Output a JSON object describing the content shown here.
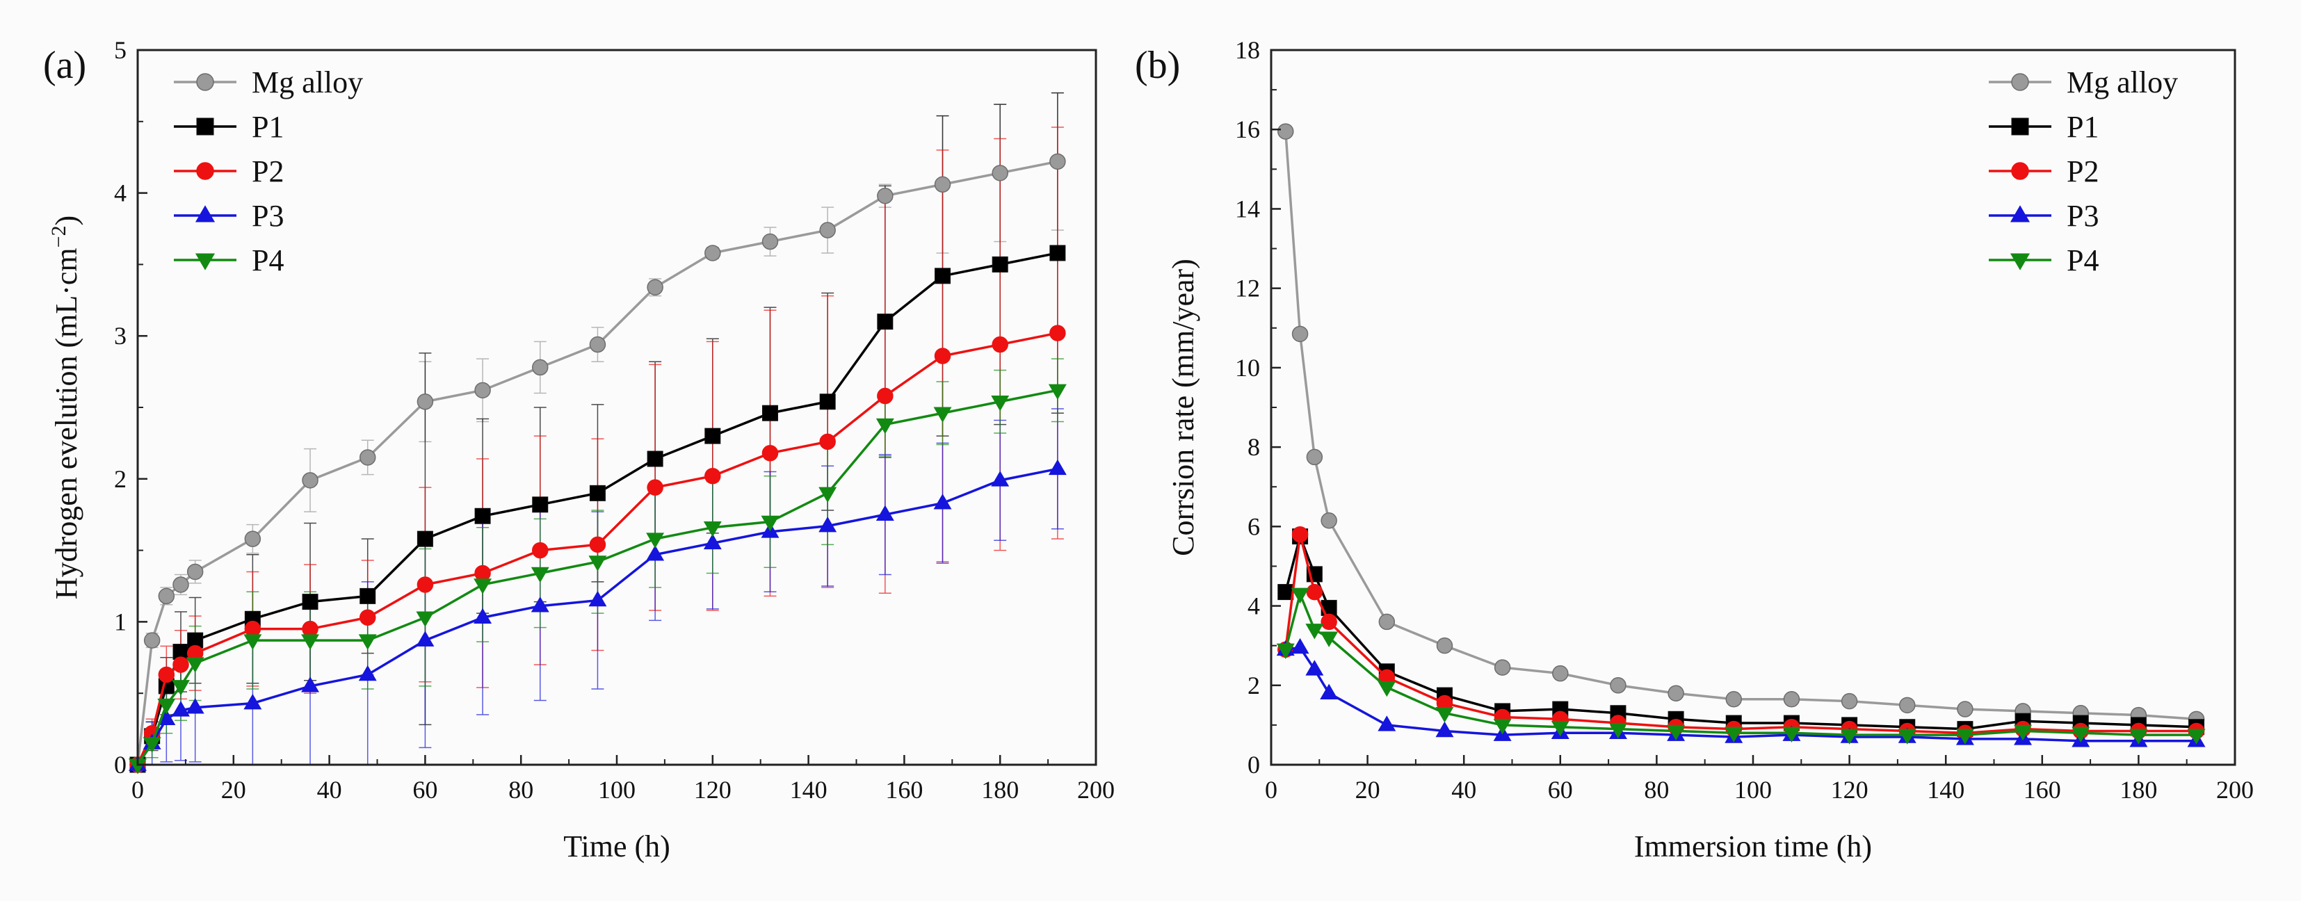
{
  "colors": {
    "Mg alloy": "#9a9a9a",
    "P1": "#000000",
    "P2": "#ee1111",
    "P3": "#1515dd",
    "P4": "#128a12"
  },
  "markers": {
    "Mg alloy": "circle",
    "P1": "square",
    "P2": "circle",
    "P3": "triangle-up",
    "P4": "triangle-down"
  },
  "chart_data": [
    {
      "type": "line",
      "panel_label": "(a)",
      "title": "",
      "xlabel": "Time (h)",
      "ylabel": "Hydrogen evelution (mL·cm",
      "ylabel_sup": "−2",
      "ylabel_close": ")",
      "xlim": [
        0,
        200
      ],
      "ylim": [
        0,
        5
      ],
      "xticks": [
        0,
        20,
        40,
        60,
        80,
        100,
        120,
        140,
        160,
        180,
        200
      ],
      "yticks": [
        0,
        1,
        2,
        3,
        4,
        5
      ],
      "grid": false,
      "legend_position": "top-left",
      "series": [
        {
          "name": "Mg alloy",
          "x": [
            0,
            3,
            6,
            9,
            12,
            24,
            36,
            48,
            60,
            72,
            84,
            96,
            108,
            120,
            132,
            144,
            156,
            168,
            180,
            192
          ],
          "y": [
            0,
            0.87,
            1.18,
            1.26,
            1.35,
            1.58,
            1.99,
            2.15,
            2.54,
            2.62,
            2.78,
            2.94,
            3.34,
            3.58,
            3.66,
            3.74,
            3.98,
            4.06,
            4.14,
            4.22
          ],
          "err": [
            0,
            0.05,
            0.06,
            0.07,
            0.08,
            0.1,
            0.22,
            0.12,
            0.28,
            0.22,
            0.18,
            0.12,
            0.06,
            0.04,
            0.1,
            0.16,
            0.08,
            0.48,
            0.48,
            0.48
          ]
        },
        {
          "name": "P1",
          "x": [
            0,
            3,
            6,
            9,
            12,
            24,
            36,
            48,
            60,
            72,
            84,
            96,
            108,
            120,
            132,
            144,
            156,
            168,
            180,
            192
          ],
          "y": [
            0,
            0.2,
            0.55,
            0.79,
            0.87,
            1.02,
            1.14,
            1.18,
            1.58,
            1.74,
            1.82,
            1.9,
            2.14,
            2.3,
            2.46,
            2.54,
            3.1,
            3.42,
            3.5,
            3.58
          ],
          "err": [
            0,
            0.1,
            0.2,
            0.28,
            0.3,
            0.45,
            0.55,
            0.4,
            1.3,
            0.68,
            0.68,
            0.62,
            0.68,
            0.68,
            0.74,
            0.76,
            0.95,
            1.12,
            1.12,
            1.12
          ]
        },
        {
          "name": "P2",
          "x": [
            0,
            3,
            6,
            9,
            12,
            24,
            36,
            48,
            60,
            72,
            84,
            96,
            108,
            120,
            132,
            144,
            156,
            168,
            180,
            192
          ],
          "y": [
            0,
            0.22,
            0.63,
            0.7,
            0.78,
            0.95,
            0.95,
            1.03,
            1.26,
            1.34,
            1.5,
            1.54,
            1.94,
            2.02,
            2.18,
            2.26,
            2.58,
            2.86,
            2.94,
            3.02
          ],
          "err": [
            0,
            0.1,
            0.2,
            0.24,
            0.26,
            0.4,
            0.45,
            0.4,
            0.68,
            0.8,
            0.8,
            0.74,
            0.86,
            0.94,
            1.0,
            1.02,
            1.38,
            1.44,
            1.44,
            1.44
          ]
        },
        {
          "name": "P3",
          "x": [
            0,
            3,
            6,
            9,
            12,
            24,
            36,
            48,
            60,
            72,
            84,
            96,
            108,
            120,
            132,
            144,
            156,
            168,
            180,
            192
          ],
          "y": [
            0,
            0.15,
            0.32,
            0.38,
            0.4,
            0.43,
            0.55,
            0.63,
            0.87,
            1.03,
            1.11,
            1.15,
            1.47,
            1.55,
            1.63,
            1.67,
            1.75,
            1.83,
            1.99,
            2.07
          ],
          "err": [
            0,
            0.15,
            0.3,
            0.35,
            0.38,
            0.6,
            0.6,
            0.65,
            0.75,
            0.68,
            0.66,
            0.62,
            0.46,
            0.46,
            0.42,
            0.42,
            0.42,
            0.42,
            0.42,
            0.42
          ]
        },
        {
          "name": "P4",
          "x": [
            0,
            3,
            6,
            9,
            12,
            24,
            36,
            48,
            60,
            72,
            84,
            96,
            108,
            120,
            132,
            144,
            156,
            168,
            180,
            192
          ],
          "y": [
            0,
            0.15,
            0.42,
            0.55,
            0.71,
            0.87,
            0.87,
            0.87,
            1.03,
            1.26,
            1.34,
            1.42,
            1.58,
            1.66,
            1.7,
            1.9,
            2.38,
            2.46,
            2.54,
            2.62
          ],
          "err": [
            0,
            0.1,
            0.2,
            0.24,
            0.26,
            0.34,
            0.34,
            0.34,
            0.48,
            0.4,
            0.38,
            0.36,
            0.34,
            0.32,
            0.32,
            0.36,
            0.22,
            0.22,
            0.22,
            0.22
          ]
        }
      ]
    },
    {
      "type": "line",
      "panel_label": "(b)",
      "title": "",
      "xlabel": "Immersion time (h)",
      "ylabel": "Corrsion rate (mm/year)",
      "xlim": [
        0,
        200
      ],
      "ylim": [
        0,
        18
      ],
      "xticks": [
        0,
        20,
        40,
        60,
        80,
        100,
        120,
        140,
        160,
        180,
        200
      ],
      "yticks": [
        0,
        2,
        4,
        6,
        8,
        10,
        12,
        14,
        16,
        18
      ],
      "grid": false,
      "legend_position": "top-right",
      "series": [
        {
          "name": "Mg alloy",
          "x": [
            3,
            6,
            9,
            12,
            24,
            36,
            48,
            60,
            72,
            84,
            96,
            108,
            120,
            132,
            144,
            156,
            168,
            180,
            192
          ],
          "y": [
            15.95,
            10.85,
            7.75,
            6.15,
            3.6,
            3.0,
            2.45,
            2.3,
            2.0,
            1.8,
            1.65,
            1.65,
            1.6,
            1.5,
            1.4,
            1.35,
            1.3,
            1.25,
            1.15
          ]
        },
        {
          "name": "P1",
          "x": [
            3,
            6,
            9,
            12,
            24,
            36,
            48,
            60,
            72,
            84,
            96,
            108,
            120,
            132,
            144,
            156,
            168,
            180,
            192
          ],
          "y": [
            4.35,
            5.75,
            4.8,
            3.95,
            2.35,
            1.75,
            1.35,
            1.4,
            1.3,
            1.15,
            1.05,
            1.05,
            1.0,
            0.95,
            0.9,
            1.1,
            1.05,
            1.0,
            0.95
          ]
        },
        {
          "name": "P2",
          "x": [
            3,
            6,
            9,
            12,
            24,
            36,
            48,
            60,
            72,
            84,
            96,
            108,
            120,
            132,
            144,
            156,
            168,
            180,
            192
          ],
          "y": [
            2.9,
            5.8,
            4.35,
            3.6,
            2.2,
            1.55,
            1.2,
            1.15,
            1.05,
            0.95,
            0.9,
            0.95,
            0.9,
            0.85,
            0.8,
            0.9,
            0.85,
            0.85,
            0.85
          ]
        },
        {
          "name": "P3",
          "x": [
            3,
            6,
            9,
            12,
            24,
            36,
            48,
            60,
            72,
            84,
            96,
            108,
            120,
            132,
            144,
            156,
            168,
            180,
            192
          ],
          "y": [
            2.9,
            2.95,
            2.4,
            1.8,
            1.0,
            0.85,
            0.75,
            0.8,
            0.8,
            0.75,
            0.7,
            0.75,
            0.7,
            0.7,
            0.65,
            0.65,
            0.6,
            0.6,
            0.6
          ]
        },
        {
          "name": "P4",
          "x": [
            3,
            6,
            9,
            12,
            24,
            36,
            48,
            60,
            72,
            84,
            96,
            108,
            120,
            132,
            144,
            156,
            168,
            180,
            192
          ],
          "y": [
            2.9,
            4.3,
            3.4,
            3.2,
            1.95,
            1.3,
            1.0,
            0.95,
            0.9,
            0.85,
            0.8,
            0.8,
            0.75,
            0.75,
            0.75,
            0.85,
            0.8,
            0.75,
            0.75
          ]
        }
      ]
    }
  ]
}
